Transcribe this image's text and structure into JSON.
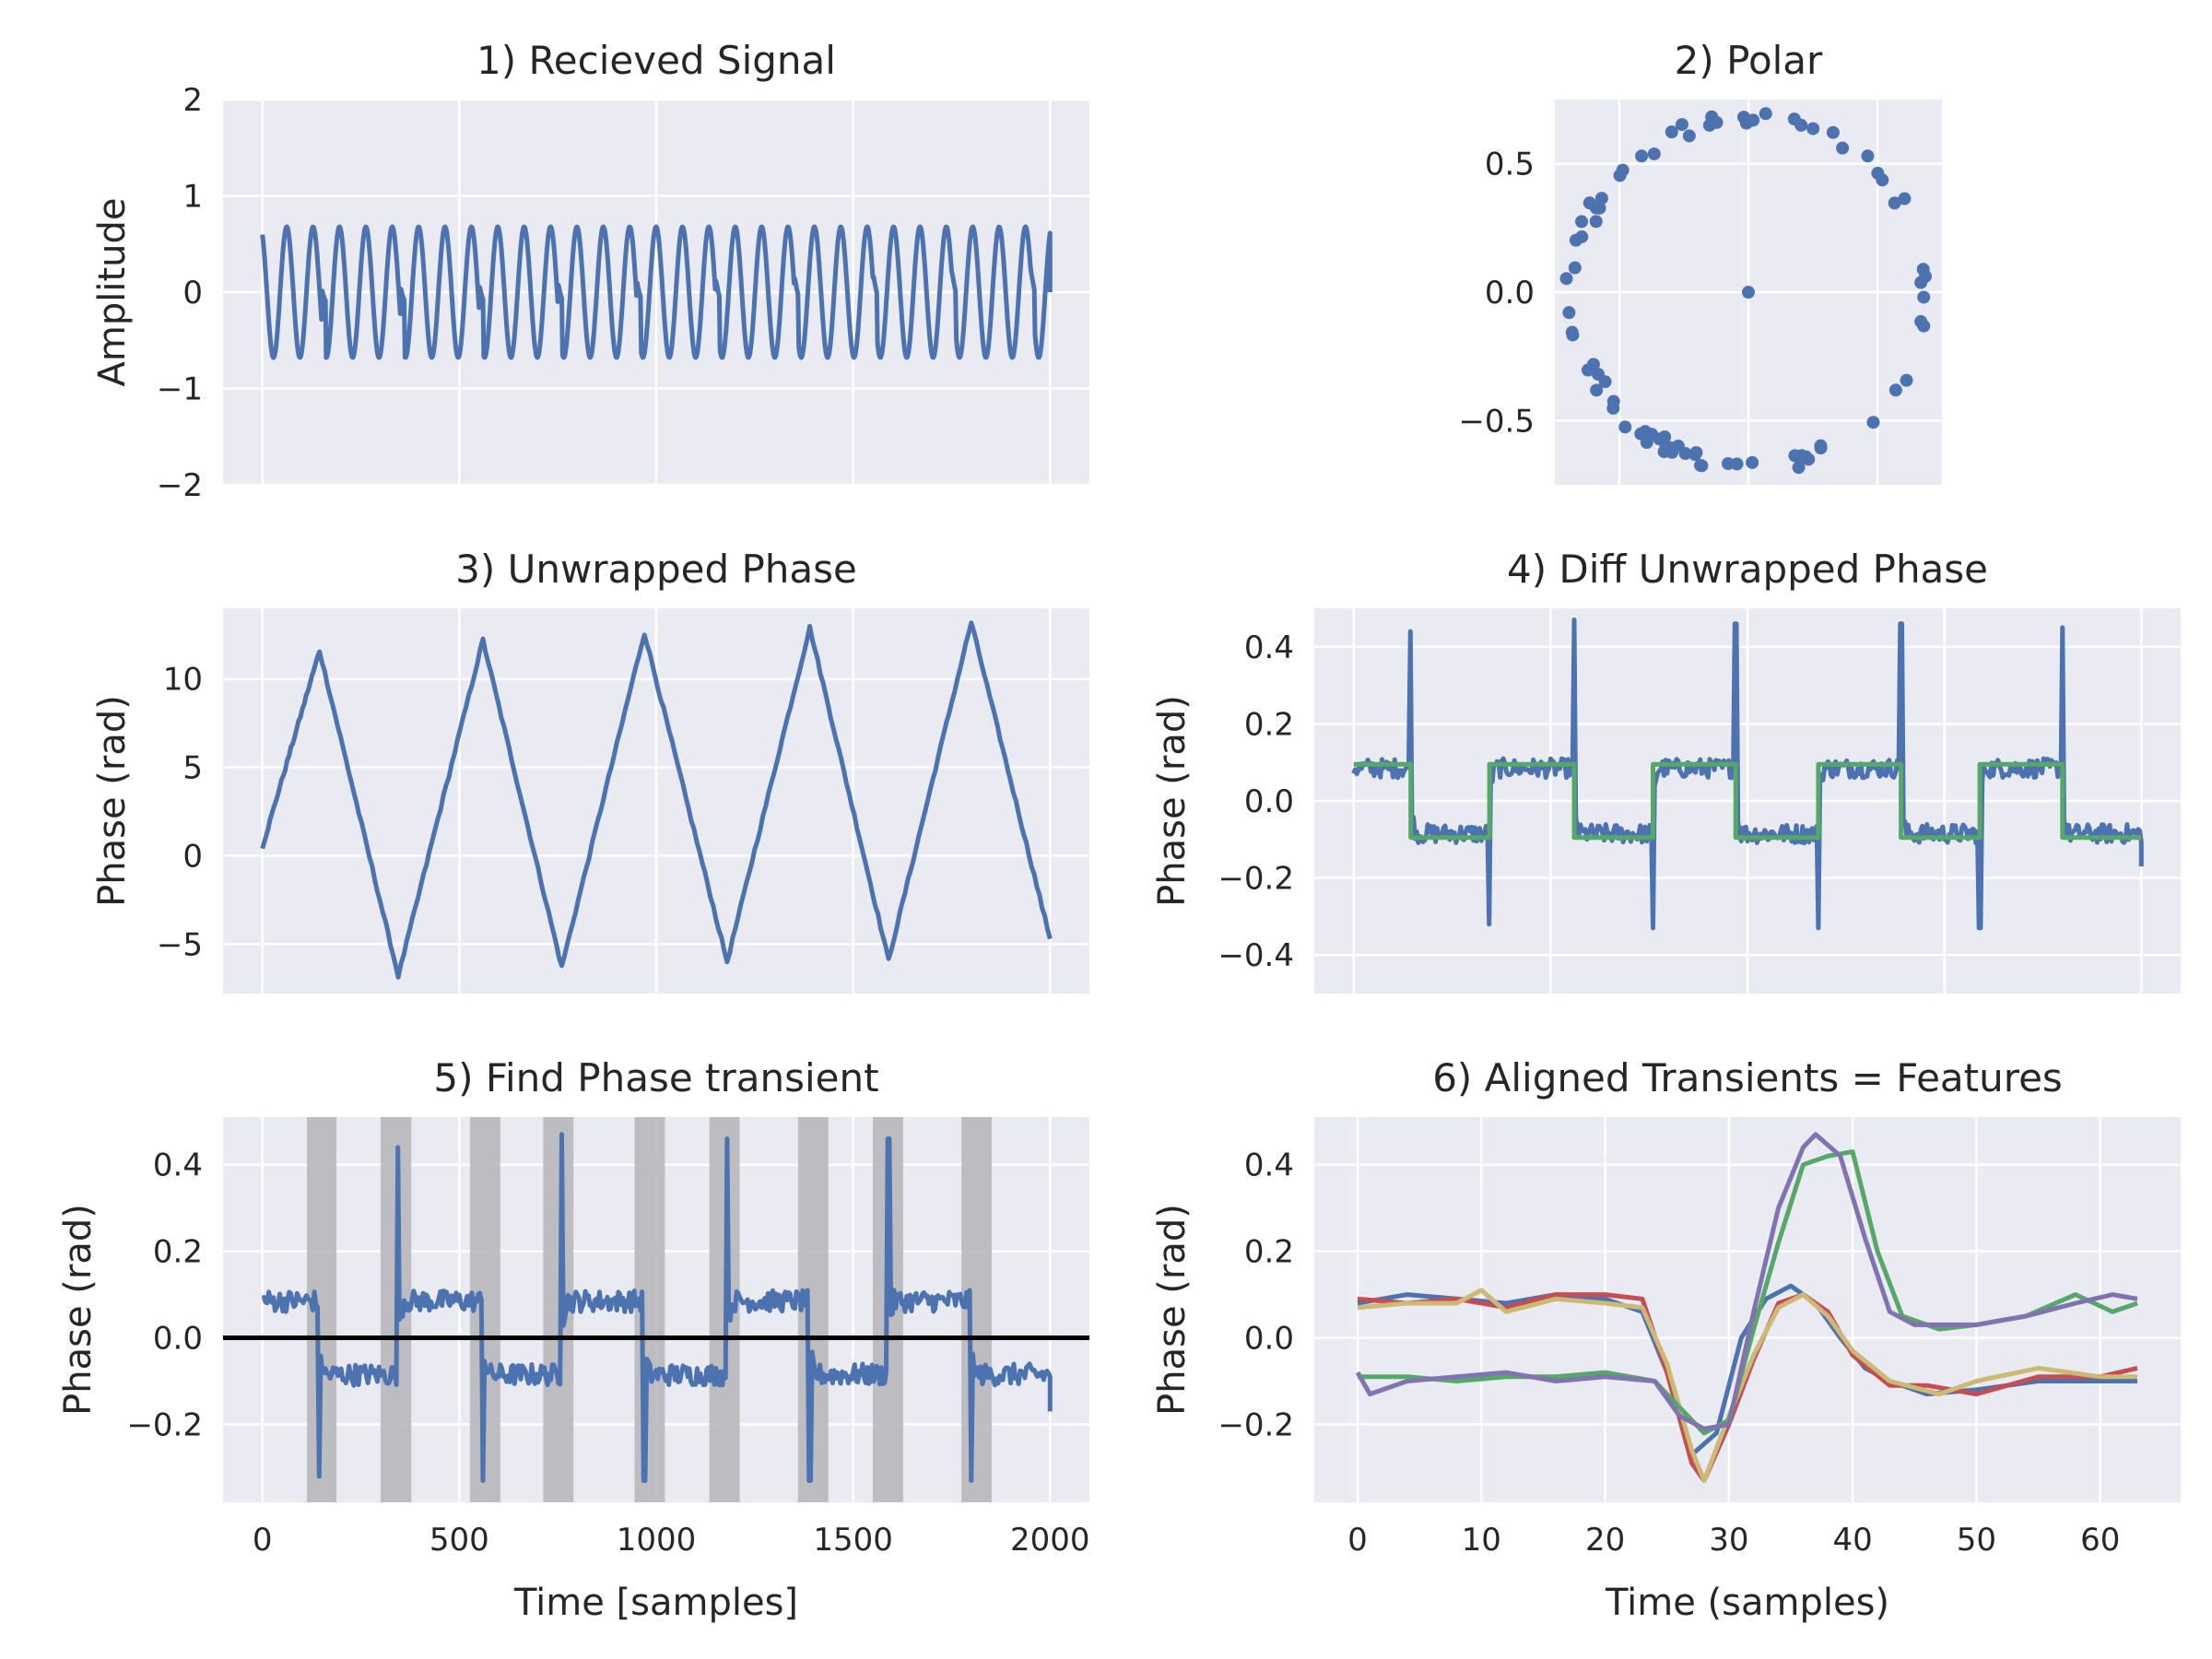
{
  "colors": {
    "background": "#eaeaf2",
    "grid": "#ffffff",
    "blue": "#4c72b0",
    "green": "#55a868",
    "red": "#c44e52",
    "purple": "#8172b2",
    "gold": "#ccb974",
    "shade": "#b4b4b9",
    "zero_line": "#000000"
  },
  "chart_data": [
    {
      "type": "line",
      "title": "1) Recieved Signal",
      "ylabel": "Amplitude",
      "xlim": [
        -100,
        2100
      ],
      "ylim": [
        -2,
        2
      ],
      "xticks": [
        0,
        500,
        1000,
        1500,
        2000
      ],
      "yticks": [
        -2,
        -1,
        0,
        1,
        2
      ],
      "ytick_labels": [
        "−2",
        "−1",
        "0",
        "1",
        "2"
      ],
      "grid": true,
      "series": [
        {
          "color": "blue",
          "kind": "ook_carrier",
          "n_samples": 2000,
          "amplitude": 0.68,
          "cycles": 30,
          "glitch_every_samples": 200,
          "last_value": 0.0
        }
      ]
    },
    {
      "type": "scatter",
      "title": "2) Polar",
      "xlim": [
        -0.75,
        0.75
      ],
      "ylim": [
        -0.75,
        0.75
      ],
      "xticks": [
        -0.5,
        0,
        0.5
      ],
      "yticks": [
        -0.5,
        0.0,
        0.5
      ],
      "ytick_labels": [
        "−0.5",
        "0.0",
        "0.5"
      ],
      "grid": true,
      "series": [
        {
          "color": "blue",
          "kind": "ring",
          "radius": 0.68,
          "center_point": [
            0,
            0
          ]
        }
      ]
    },
    {
      "type": "line",
      "title": "3) Unwrapped Phase",
      "ylabel": "Phase (rad)",
      "xlim": [
        -100,
        2100
      ],
      "ylim": [
        -7.8,
        14
      ],
      "xticks": [
        0,
        500,
        1000,
        1500,
        2000
      ],
      "yticks": [
        -5,
        0,
        5,
        10
      ],
      "ytick_labels": [
        "−5",
        "0",
        "5",
        "10"
      ],
      "grid": true,
      "series": [
        {
          "color": "blue",
          "kind": "triangle",
          "x": [
            0,
            145,
            345,
            560,
            760,
            970,
            1180,
            1390,
            1590,
            1800,
            2000
          ],
          "y": [
            0.5,
            11.6,
            -6.8,
            12.2,
            -6.3,
            12.6,
            -6.0,
            12.9,
            -5.9,
            13.2,
            -4.7
          ]
        }
      ]
    },
    {
      "type": "line",
      "title": "4) Diff Unwrapped Phase",
      "ylabel": "Phase (rad)",
      "xlim": [
        -100,
        2100
      ],
      "ylim": [
        -0.5,
        0.5
      ],
      "xticks": [
        0,
        500,
        1000,
        1500,
        2000
      ],
      "yticks": [
        -0.4,
        -0.2,
        0.0,
        0.2,
        0.4
      ],
      "ytick_labels": [
        "−0.4",
        "−0.2",
        "0.0",
        "0.2",
        "0.4"
      ],
      "grid": true,
      "series": [
        {
          "color": "blue",
          "kind": "noisy_square",
          "level": 0.085,
          "switch_points": [
            145,
            345,
            560,
            760,
            970,
            1180,
            1390,
            1590,
            1800
          ],
          "spikes": [
            0.44,
            -0.32,
            0.47,
            -0.33,
            0.46,
            -0.33,
            0.46,
            -0.33,
            0.45
          ],
          "last_value": -0.17
        },
        {
          "color": "green",
          "kind": "square",
          "level": 0.095,
          "switch_points": [
            145,
            345,
            560,
            760,
            970,
            1180,
            1390,
            1590,
            1800
          ]
        }
      ]
    },
    {
      "type": "line",
      "title": "5) Find Phase transient",
      "xlabel": "Time [samples]",
      "ylabel": "Phase (rad)",
      "xlim": [
        -100,
        2100
      ],
      "ylim": [
        -0.38,
        0.51
      ],
      "xticks": [
        0,
        500,
        1000,
        1500,
        2000
      ],
      "xtick_labels": [
        "0",
        "500",
        "1000",
        "1500",
        "2000"
      ],
      "yticks": [
        -0.2,
        0.0,
        0.2,
        0.4
      ],
      "ytick_labels": [
        "−0.2",
        "0.0",
        "0.2",
        "0.4"
      ],
      "grid": true,
      "shaded_regions": [
        [
          113,
          188
        ],
        [
          300,
          378
        ],
        [
          527,
          604
        ],
        [
          713,
          790
        ],
        [
          945,
          1022
        ],
        [
          1135,
          1212
        ],
        [
          1360,
          1437
        ],
        [
          1550,
          1627
        ],
        [
          1775,
          1852
        ]
      ],
      "hline": 0.0,
      "series": [
        {
          "color": "blue",
          "kind": "noisy_square",
          "level": 0.085,
          "switch_points": [
            145,
            345,
            560,
            760,
            970,
            1180,
            1390,
            1590,
            1800
          ],
          "spikes": [
            -0.32,
            0.44,
            -0.33,
            0.47,
            -0.33,
            0.46,
            -0.33,
            0.46,
            -0.33
          ],
          "last_value": -0.17
        }
      ]
    },
    {
      "type": "line",
      "title": "6) Aligned Transients = Features",
      "xlabel": "Time (samples)",
      "ylabel": "Phase (rad)",
      "xlim": [
        -3.5,
        66.5
      ],
      "ylim": [
        -0.38,
        0.51
      ],
      "xticks": [
        0,
        10,
        20,
        30,
        40,
        50,
        60
      ],
      "xtick_labels": [
        "0",
        "10",
        "20",
        "30",
        "40",
        "50",
        "60"
      ],
      "yticks": [
        -0.2,
        0.0,
        0.2,
        0.4
      ],
      "ytick_labels": [
        "−0.2",
        "0.0",
        "0.2",
        "0.4"
      ],
      "grid": true,
      "series": [
        {
          "color": "blue",
          "x": [
            0,
            4,
            8,
            12,
            16,
            20,
            23,
            25,
            27,
            29,
            31,
            33,
            35,
            37,
            39,
            41,
            43,
            46,
            50,
            55,
            60,
            63
          ],
          "y": [
            0.08,
            0.1,
            0.09,
            0.08,
            0.1,
            0.09,
            0.06,
            -0.08,
            -0.27,
            -0.22,
            0.0,
            0.09,
            0.12,
            0.08,
            0.0,
            -0.07,
            -0.1,
            -0.13,
            -0.12,
            -0.1,
            -0.1,
            -0.1
          ]
        },
        {
          "color": "red",
          "x": [
            0,
            4,
            8,
            12,
            16,
            20,
            23,
            25,
            27,
            28,
            30,
            32,
            34,
            36,
            38,
            40,
            43,
            46,
            50,
            55,
            60,
            63
          ],
          "y": [
            0.09,
            0.08,
            0.09,
            0.07,
            0.1,
            0.1,
            0.09,
            -0.08,
            -0.29,
            -0.33,
            -0.2,
            -0.05,
            0.08,
            0.1,
            0.06,
            -0.04,
            -0.11,
            -0.11,
            -0.13,
            -0.09,
            -0.09,
            -0.07
          ]
        },
        {
          "color": "gold",
          "x": [
            0,
            4,
            8,
            10,
            12,
            16,
            20,
            23,
            25,
            27,
            28,
            30,
            32,
            34,
            36,
            38,
            40,
            43,
            47,
            50,
            55,
            60,
            63
          ],
          "y": [
            0.07,
            0.08,
            0.08,
            0.11,
            0.06,
            0.09,
            0.08,
            0.07,
            -0.06,
            -0.26,
            -0.33,
            -0.18,
            -0.04,
            0.07,
            0.1,
            0.05,
            -0.03,
            -0.1,
            -0.13,
            -0.1,
            -0.07,
            -0.09,
            -0.09
          ]
        },
        {
          "color": "green",
          "x": [
            0,
            4,
            8,
            12,
            16,
            20,
            24,
            26,
            28,
            30,
            32,
            34,
            36,
            38,
            40,
            42,
            44,
            47,
            50,
            54,
            58,
            61,
            63
          ],
          "y": [
            -0.09,
            -0.09,
            -0.1,
            -0.09,
            -0.09,
            -0.08,
            -0.1,
            -0.16,
            -0.22,
            -0.19,
            0.02,
            0.22,
            0.4,
            0.42,
            0.43,
            0.2,
            0.05,
            0.02,
            0.03,
            0.05,
            0.1,
            0.06,
            0.08
          ]
        },
        {
          "color": "purple",
          "x": [
            0,
            1,
            4,
            8,
            12,
            16,
            20,
            24,
            26,
            28,
            30,
            32,
            34,
            36,
            37,
            39,
            41,
            43,
            45,
            48,
            50,
            54,
            58,
            61,
            63
          ],
          "y": [
            -0.08,
            -0.13,
            -0.1,
            -0.09,
            -0.08,
            -0.1,
            -0.09,
            -0.1,
            -0.18,
            -0.21,
            -0.2,
            0.06,
            0.3,
            0.44,
            0.47,
            0.42,
            0.23,
            0.06,
            0.03,
            0.03,
            0.03,
            0.05,
            0.08,
            0.1,
            0.09
          ]
        }
      ]
    }
  ]
}
